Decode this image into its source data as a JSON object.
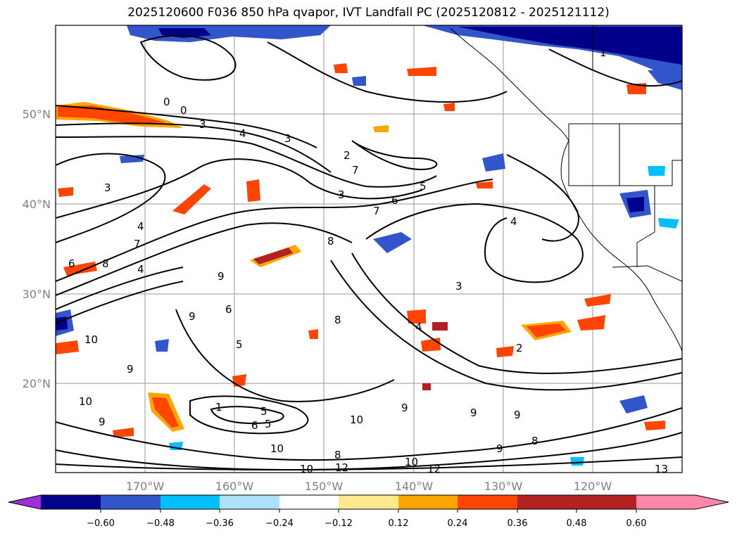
{
  "title": "2025120600 F036 850 hPa qvapor, IVT Landfall PC (2025120812 - 2025121112)",
  "lat_ticks": [
    "50°N",
    "40°N",
    "30°N",
    "20°N"
  ],
  "lon_ticks": [
    "170°W",
    "160°W",
    "150°W",
    "140°W",
    "130°W",
    "120°W"
  ],
  "colorbar": {
    "tick_labels": [
      "−0.60",
      "−0.48",
      "−0.36",
      "−0.24",
      "−0.12",
      "0.12",
      "0.24",
      "0.36",
      "0.48",
      "0.60"
    ],
    "colors": [
      "#9b30d9",
      "#00008b",
      "#3355cc",
      "#00bfff",
      "#aee0fa",
      "#ffffff",
      "#ffe98f",
      "#ffa500",
      "#ff4500",
      "#b22222",
      "#ff88aa"
    ]
  },
  "contour_labels": [
    "0",
    "0",
    "3",
    "4",
    "3",
    "2",
    "7",
    "3",
    "6",
    "5",
    "7",
    "3",
    "4",
    "7",
    "6",
    "8",
    "4",
    "8",
    "9",
    "9",
    "10",
    "9",
    "10",
    "4",
    "6",
    "5",
    "9",
    "10",
    "10",
    "8",
    "10",
    "9",
    "12",
    "10",
    "12",
    "13",
    "4",
    "8",
    "9",
    "8",
    "9",
    "3",
    "2",
    "1",
    "6",
    "5",
    "5",
    "1",
    "9"
  ]
}
